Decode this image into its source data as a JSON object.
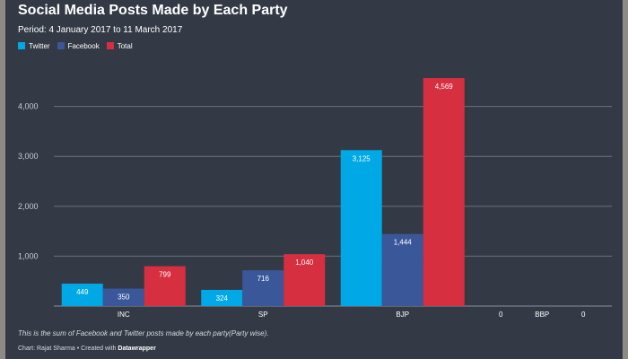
{
  "chart_data": {
    "type": "bar",
    "title": "Social Media Posts Made by Each Party",
    "subtitle": "Period: 4 January 2017 to 11 March 2017",
    "categories": [
      "INC",
      "SP",
      "BJP",
      "BBP"
    ],
    "series": [
      {
        "name": "Twitter",
        "color": "#00a9e6",
        "values": [
          449,
          324,
          3125,
          0
        ],
        "labels": [
          "449",
          "324",
          "3,125",
          "0"
        ]
      },
      {
        "name": "Facebook",
        "color": "#3a5799",
        "values": [
          350,
          716,
          1444,
          0
        ],
        "labels": [
          "350",
          "716",
          "1,444",
          "0"
        ]
      },
      {
        "name": "Total",
        "color": "#d52f40",
        "values": [
          799,
          1040,
          4569,
          0
        ],
        "labels": [
          "799",
          "1,040",
          "4,569",
          "0"
        ]
      }
    ],
    "yticks": [
      1000,
      2000,
      3000,
      4000
    ],
    "ytick_labels": [
      "1,000",
      "2,000",
      "3,000",
      "4,000"
    ],
    "ylim": [
      0,
      4569
    ],
    "grid": true,
    "legend": "top-left",
    "xlabel": "",
    "ylabel": ""
  },
  "footnote": "This is the sum of Facebook and Twitter posts made by each party(Party wise).",
  "credit": {
    "prefix": "Chart: Rajat Sharma • Created with ",
    "tool": "Datawrapper"
  }
}
